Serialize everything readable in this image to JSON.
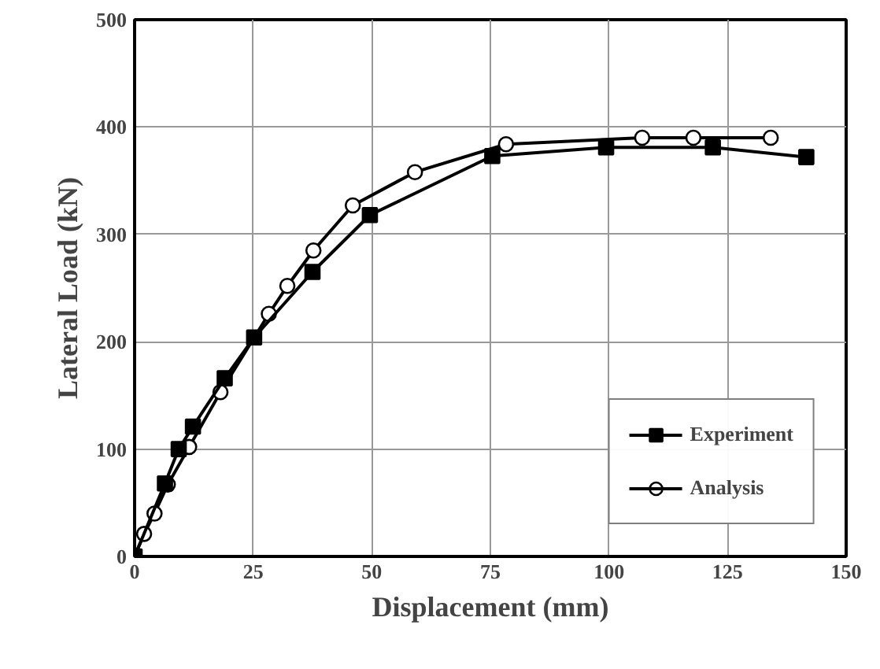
{
  "chart_data": {
    "type": "line",
    "xlabel": "Displacement (mm)",
    "ylabel": "Lateral Load (kN)",
    "xlim": [
      0,
      150
    ],
    "ylim": [
      0,
      500
    ],
    "xticks": [
      0,
      25,
      50,
      75,
      100,
      125,
      150
    ],
    "yticks": [
      0,
      100,
      200,
      300,
      400,
      500
    ],
    "grid": true,
    "legend": "bottom right",
    "line_style": "solid",
    "series": [
      {
        "name": "Experiment",
        "color": "#000000",
        "marker": "square",
        "x": [
          0,
          6.4,
          9.3,
          12.3,
          19,
          25.2,
          37.5,
          49.6,
          75.4,
          99.4,
          121.9,
          141.6
        ],
        "values": [
          0,
          68,
          100,
          121,
          166,
          204,
          265,
          318,
          373,
          381,
          381,
          372
        ]
      },
      {
        "name": "Analysis",
        "color": "#000000",
        "marker": "circle",
        "x": [
          0,
          2,
          4.2,
          7,
          11.5,
          18.1,
          28.3,
          32.2,
          37.7,
          46,
          59.1,
          78.3,
          107,
          117.8,
          134.1
        ],
        "values": [
          0,
          21,
          40,
          67,
          102,
          153,
          226,
          252,
          285,
          327,
          358,
          384,
          390,
          390,
          390
        ]
      }
    ]
  }
}
